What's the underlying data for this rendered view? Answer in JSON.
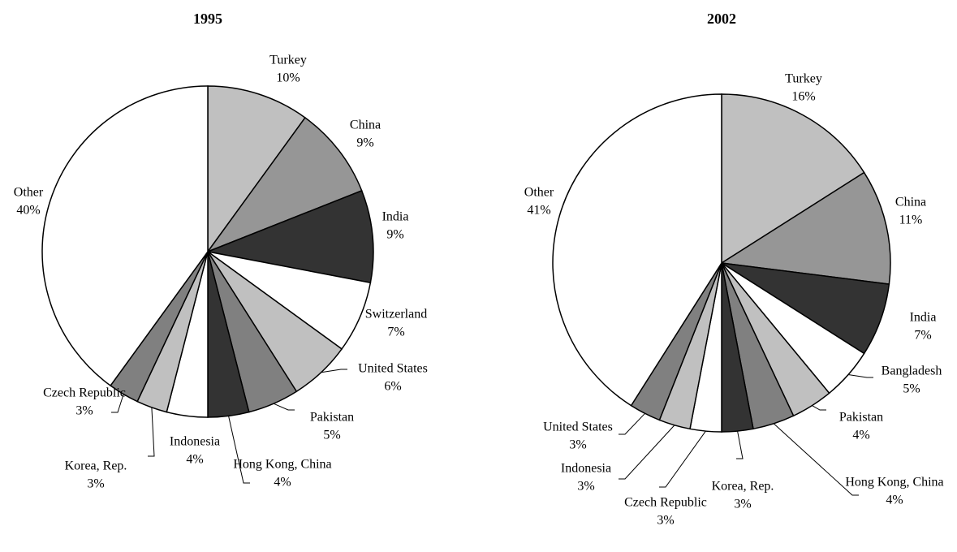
{
  "chart_data": [
    {
      "type": "pie",
      "title": "1995",
      "categories": [
        "Turkey",
        "China",
        "India",
        "Switzerland",
        "United States",
        "Pakistan",
        "Hong Kong, China",
        "Indonesia",
        "Korea, Rep.",
        "Czech Republic",
        "Other"
      ],
      "values": [
        10,
        9,
        9,
        7,
        6,
        5,
        4,
        4,
        3,
        3,
        40
      ],
      "value_labels": [
        "10%",
        "9%",
        "9%",
        "7%",
        "6%",
        "5%",
        "4%",
        "4%",
        "3%",
        "3%",
        "40%"
      ],
      "colors": [
        "#c0c0c0",
        "#969696",
        "#333333",
        "#ffffff",
        "#c0c0c0",
        "#808080",
        "#333333",
        "#ffffff",
        "#c0c0c0",
        "#808080",
        "#ffffff"
      ]
    },
    {
      "type": "pie",
      "title": "2002",
      "categories": [
        "Turkey",
        "China",
        "India",
        "Bangladesh",
        "Pakistan",
        "Hong Kong, China",
        "Korea, Rep.",
        "Czech Republic",
        "Indonesia",
        "United States",
        "Other"
      ],
      "values": [
        16,
        11,
        7,
        5,
        4,
        4,
        3,
        3,
        3,
        3,
        41
      ],
      "value_labels": [
        "16%",
        "11%",
        "7%",
        "5%",
        "4%",
        "4%",
        "3%",
        "3%",
        "3%",
        "3%",
        "41%"
      ],
      "colors": [
        "#c0c0c0",
        "#969696",
        "#333333",
        "#ffffff",
        "#c0c0c0",
        "#808080",
        "#333333",
        "#ffffff",
        "#c0c0c0",
        "#808080",
        "#ffffff"
      ]
    }
  ]
}
